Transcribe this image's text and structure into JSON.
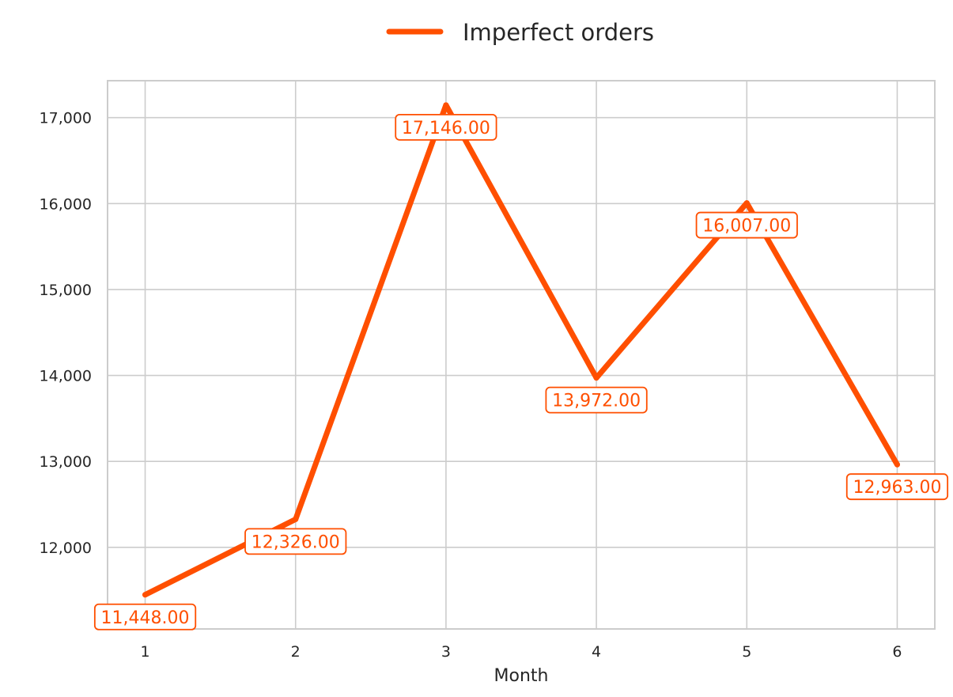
{
  "chart_data": {
    "type": "line",
    "title": "",
    "xlabel": "Month",
    "ylabel": "",
    "x": [
      1,
      2,
      3,
      4,
      5,
      6
    ],
    "xticks": [
      "1",
      "2",
      "3",
      "4",
      "5",
      "6"
    ],
    "xlim": [
      0.75,
      6.25
    ],
    "ylim": [
      11050,
      17430
    ],
    "yticks": [
      12000,
      13000,
      14000,
      15000,
      16000,
      17000
    ],
    "ytick_labels": [
      "12,000",
      "13,000",
      "14,000",
      "15,000",
      "16,000",
      "17,000"
    ],
    "grid": true,
    "legend_position": "top-center",
    "series": [
      {
        "name": "Imperfect orders",
        "color": "#FF4F00",
        "values": [
          11448,
          12326,
          17146,
          13972,
          16007,
          12963
        ],
        "data_labels": [
          "11,448.00",
          "12,326.00",
          "17,146.00",
          "13,972.00",
          "16,007.00",
          "12,963.00"
        ]
      }
    ]
  }
}
